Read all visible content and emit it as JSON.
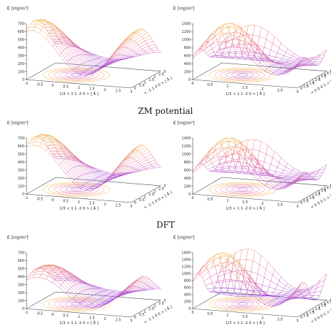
{
  "figure": {
    "row_captions": [
      "ZM potential",
      "DFT"
    ]
  },
  "chart_data": [
    {
      "type": "surface3d",
      "row": 0,
      "col": 0,
      "ylabel": "E [mJ/m²]",
      "z_ticks": [
        "0",
        "100",
        "200",
        "300",
        "400",
        "500",
        "600",
        "700"
      ],
      "x_label": "1/3 < 1 1 -2 0 > [ Å ]",
      "x_ticks": [
        "-1",
        "-0.5",
        "0",
        "0.5",
        "1",
        "1.5",
        "2",
        "2.5",
        "3"
      ],
      "y_label": "< -1 1 0 0 > [ Å ]",
      "y_ticks": [
        "0",
        "0.5",
        "1",
        "1.5",
        "2",
        "2.5",
        "3"
      ],
      "x_range": [
        -1,
        3
      ],
      "y_range": [
        0,
        3
      ],
      "z_range": [
        0,
        700
      ]
    },
    {
      "type": "surface3d",
      "row": 0,
      "col": 1,
      "ylabel": "E [mJ/m²]",
      "z_ticks": [
        "0",
        "200",
        "400",
        "600",
        "800",
        "1000",
        "1200",
        "1400"
      ],
      "x_label": "1/3 < 1 1 -2 0 > [ Å ]",
      "x_ticks": [
        "0",
        "0.5",
        "1",
        "1.5",
        "2",
        "2.5",
        "3"
      ],
      "y_label": "< 0 0 0 1 > [ Å ]",
      "y_ticks": [
        "0",
        "0.5",
        "1",
        "1.5",
        "2",
        "2.5",
        "3",
        "3.5",
        "4",
        "4.5",
        "5"
      ],
      "x_range": [
        0,
        3
      ],
      "y_range": [
        0,
        5
      ],
      "z_range": [
        0,
        1400
      ]
    },
    {
      "type": "surface3d",
      "row": 1,
      "col": 0,
      "ylabel": "E [mJ/m²]",
      "z_ticks": [
        "0",
        "100",
        "200",
        "300",
        "400",
        "500",
        "600",
        "700"
      ],
      "x_label": "1/3 < 1 1 -2 0 > [ Å ]",
      "x_ticks": [
        "-1",
        "-0.5",
        "0",
        "0.5",
        "1",
        "1.5",
        "2",
        "2.5",
        "3"
      ],
      "y_label": "< -1 1 0 0 > [ Å ]",
      "y_ticks": [
        "0",
        "0.5",
        "1",
        "1.5",
        "2",
        "2.5",
        "3"
      ],
      "x_range": [
        -1,
        3
      ],
      "y_range": [
        0,
        3
      ],
      "z_range": [
        0,
        700
      ]
    },
    {
      "type": "surface3d",
      "row": 1,
      "col": 1,
      "ylabel": "E [mJ/m²]",
      "z_ticks": [
        "0",
        "200",
        "400",
        "600",
        "800",
        "1000",
        "1200",
        "1400"
      ],
      "x_label": "1/3 < 1 1 -2 0 > [ Å ]",
      "x_ticks": [
        "0",
        "0.5",
        "1",
        "1.5",
        "2",
        "2.5",
        "3"
      ],
      "y_label": "< 0 0 0 1 > [ Å ]",
      "y_ticks": [
        "0",
        "0.5",
        "1",
        "1.5",
        "2",
        "2.5",
        "3",
        "3.5",
        "4",
        "4.5",
        "5"
      ],
      "x_range": [
        0,
        3
      ],
      "y_range": [
        0,
        5
      ],
      "z_range": [
        0,
        1400
      ]
    },
    {
      "type": "surface3d",
      "row": 2,
      "col": 0,
      "ylabel": "E [mJ/m²]",
      "z_ticks": [
        "0",
        "100",
        "200",
        "300",
        "400",
        "500",
        "600",
        "700"
      ],
      "x_label": "1/3 < 1 1 -2 0 > [ Å ]",
      "x_ticks": [
        "-1",
        "-0.5",
        "0",
        "0.5",
        "1",
        "1.5",
        "2",
        "2.5",
        "3"
      ],
      "y_label": "< -1 1 0 0 > [ Å ]",
      "y_ticks": [
        "0",
        "0.5",
        "1",
        "1.5",
        "2",
        "2.5",
        "3"
      ],
      "x_range": [
        -1,
        3
      ],
      "y_range": [
        0,
        3
      ],
      "z_range": [
        0,
        700
      ]
    },
    {
      "type": "surface3d",
      "row": 2,
      "col": 1,
      "ylabel": "E [mJ/m²]",
      "z_ticks": [
        "0",
        "200",
        "400",
        "600",
        "800",
        "1000",
        "1200",
        "1400",
        "1600"
      ],
      "x_label": "1/3 < 1 1 -2 0 > [ Å ]",
      "x_ticks": [
        "0",
        "0.5",
        "1",
        "1.5",
        "2",
        "2.5",
        "3"
      ],
      "y_label": "< 0 0 0 1 > [ Å ]",
      "y_ticks": [
        "0",
        "0.5",
        "1",
        "1.5",
        "2",
        "2.5",
        "3",
        "3.5",
        "4",
        "4.5",
        "5"
      ],
      "x_range": [
        0,
        3
      ],
      "y_range": [
        0,
        5
      ],
      "z_range": [
        0,
        1600
      ]
    }
  ],
  "colors": {
    "low": "#8a3df0",
    "mid": "#e05a8c",
    "high": "#f2b437",
    "axis": "#333333"
  }
}
